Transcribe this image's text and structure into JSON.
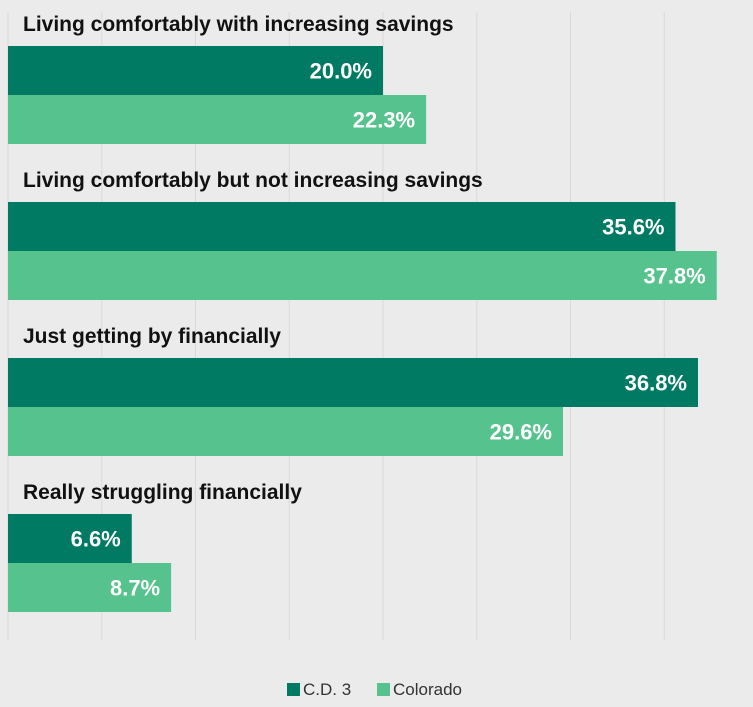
{
  "chart_data": {
    "type": "bar",
    "orientation": "horizontal",
    "categories": [
      "Living comfortably with increasing savings",
      "Living comfortably but not increasing savings",
      "Just getting by financially",
      "Really struggling financially"
    ],
    "series": [
      {
        "name": "C.D. 3",
        "color": "#007a63",
        "values": [
          20.0,
          35.6,
          36.8,
          6.6
        ],
        "labels": [
          "20.0%",
          "35.6%",
          "36.8%",
          "6.6%"
        ]
      },
      {
        "name": "Colorado",
        "color": "#56c28d",
        "values": [
          22.3,
          37.8,
          29.6,
          8.7
        ],
        "labels": [
          "22.3%",
          "37.8%",
          "29.6%",
          "8.7%"
        ]
      }
    ],
    "xlim": [
      0,
      40
    ],
    "grid": true,
    "legend_position": "bottom",
    "background": "#ebebeb",
    "gridline_color": "#d9d9d9"
  }
}
